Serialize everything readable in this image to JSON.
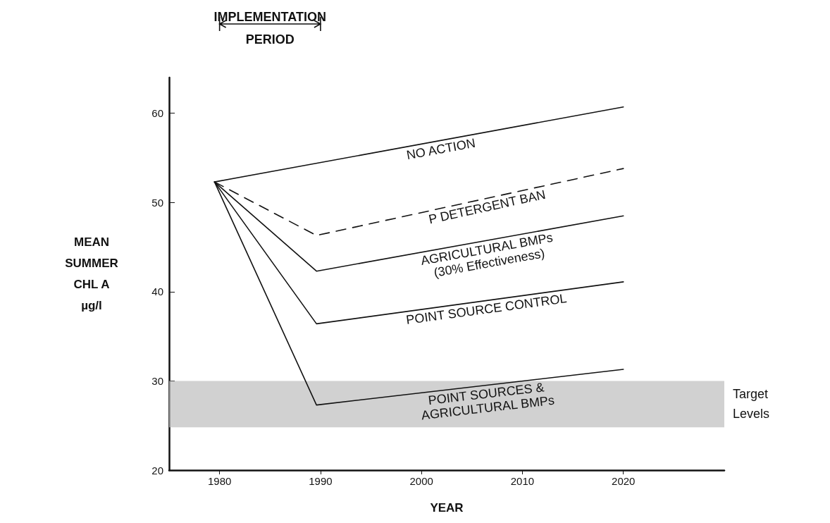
{
  "chart_data": {
    "type": "line",
    "xlabel": "YEAR",
    "ylabel": "MEAN\nSUMMER\nCHL A\nµg/l",
    "xlim": [
      1975,
      2030
    ],
    "xticks": [
      1980,
      1990,
      2000,
      2010,
      2020
    ],
    "ylim": [
      20,
      64
    ],
    "yticks": [
      20,
      30,
      40,
      50,
      60
    ],
    "grid": false,
    "legend": false,
    "marker": "none",
    "series": [
      {
        "name": "NO ACTION",
        "color": "#111111",
        "x": [
          1979.5,
          2020
        ],
        "values": [
          52.3,
          60.7
        ]
      },
      {
        "name": "P DETERGENT BAN",
        "color": "#111111",
        "line_style": "dashed",
        "x": [
          1979.5,
          1989.6,
          2020
        ],
        "values": [
          52.3,
          46.3,
          53.8
        ]
      },
      {
        "name": "AGRICULTURAL BMPs\n(30% Effectiveness)",
        "color": "#111111",
        "x": [
          1979.5,
          1989.6,
          2020
        ],
        "values": [
          52.3,
          42.3,
          48.5
        ]
      },
      {
        "name": "POINT SOURCE CONTROL",
        "color": "#111111",
        "x": [
          1979.5,
          1989.6,
          2020
        ],
        "values": [
          52.3,
          36.4,
          41.1
        ]
      },
      {
        "name": "POINT SOURCES &\nAGRICULTURAL BMPs",
        "color": "#111111",
        "x": [
          1979.5,
          1989.6,
          2020
        ],
        "values": [
          52.3,
          27.3,
          31.3
        ]
      }
    ],
    "annotations": [
      "IMPLEMENTATION\nPERIOD"
    ],
    "bands": [
      {
        "axis": "y",
        "from": 24.8,
        "to": 30,
        "label": "Target Levels",
        "color": "#bdbdbd"
      }
    ]
  }
}
